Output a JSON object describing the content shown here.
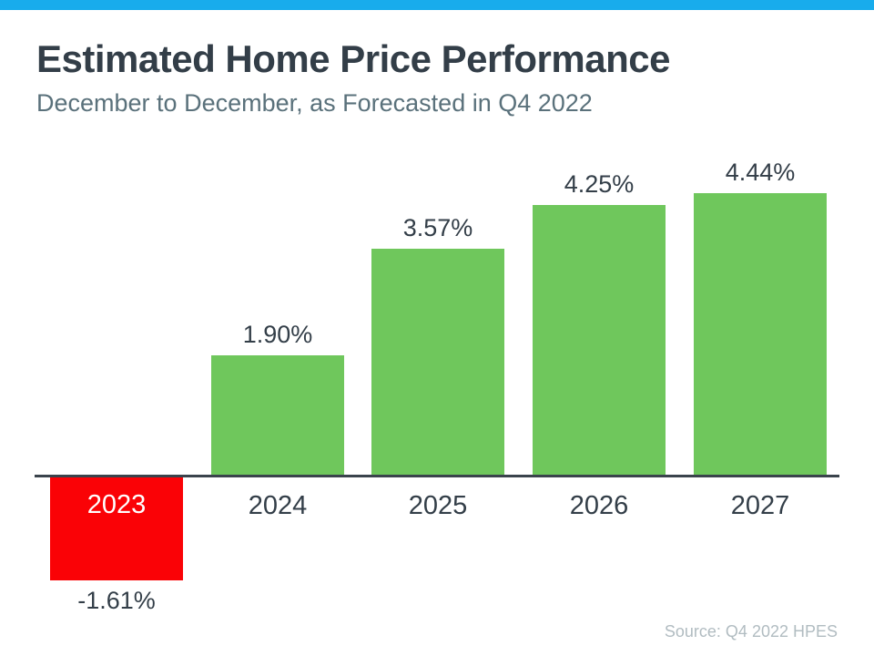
{
  "page": {
    "title": "Estimated Home Price Performance",
    "subtitle": "December to December, as Forecasted in Q4 2022",
    "source": "Source: Q4 2022 HPES"
  },
  "theme": {
    "accent_topbar_color": "#18acec",
    "positive_bar_color": "#6fc75c",
    "negative_bar_color": "#fa0206",
    "axis_color": "#3a434c",
    "title_color": "#333e48",
    "subtitle_color": "#5a717b",
    "source_color": "#b1bcc1"
  },
  "chart_data": {
    "type": "bar",
    "title": "Estimated Home Price Performance",
    "subtitle": "December to December, as Forecasted in Q4 2022",
    "categories": [
      "2023",
      "2024",
      "2025",
      "2026",
      "2027"
    ],
    "values": [
      -1.61,
      1.9,
      3.57,
      4.25,
      4.44
    ],
    "value_labels": [
      "-1.61%",
      "1.90%",
      "3.57%",
      "4.25%",
      "4.44%"
    ],
    "unit": "%",
    "xlabel": "",
    "ylabel": "",
    "ylim": [
      -2,
      5
    ],
    "grid": false,
    "legend": false,
    "positive_color": "#6fc75c",
    "negative_color": "#fa0206",
    "annotation": "Source: Q4 2022 HPES"
  }
}
